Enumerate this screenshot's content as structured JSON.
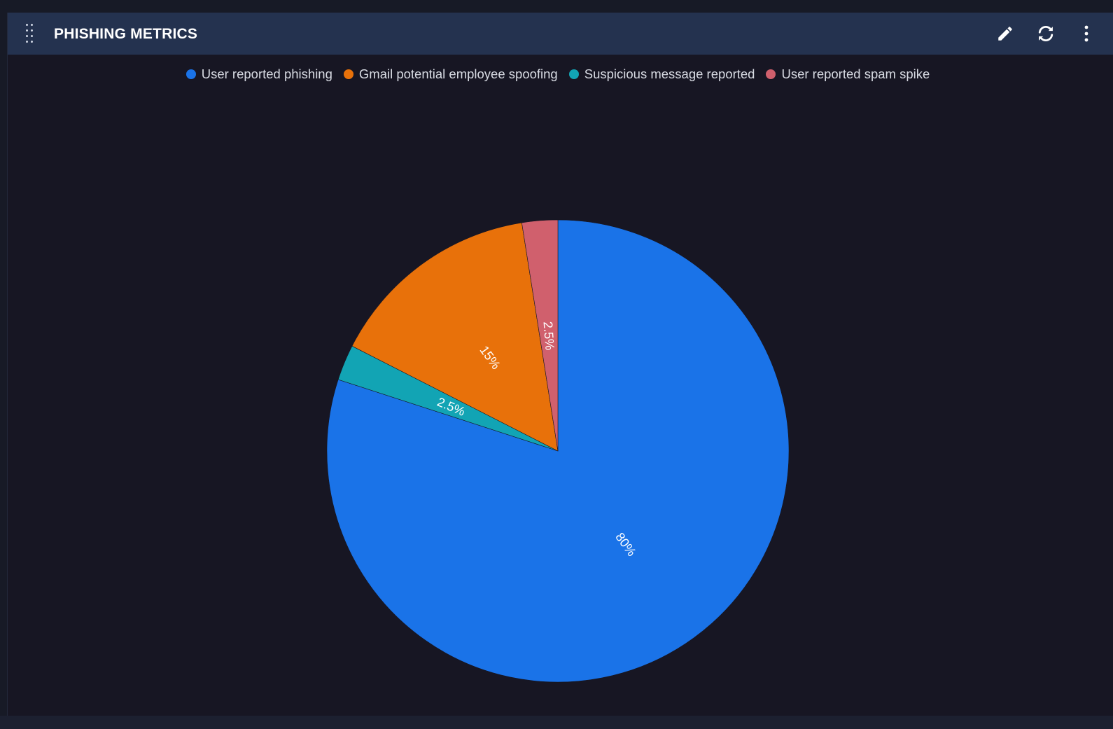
{
  "widget": {
    "title": "PHISHING METRICS",
    "icons": {
      "drag": "drag-handle-icon",
      "edit": "pencil-icon",
      "refresh": "refresh-icon",
      "more": "vertical-ellipsis-icon"
    }
  },
  "colors": {
    "background": "#171623",
    "header": "#24324f",
    "label_text": "#ffffff"
  },
  "chart_data": {
    "type": "pie",
    "title": "",
    "legend_position": "top-center",
    "slice_labels": "percent",
    "start": "12 o'clock",
    "direction": "clockwise",
    "series": [
      {
        "name": "User reported phishing",
        "value": 80,
        "label": "80%",
        "color": "#1a73e8"
      },
      {
        "name": "Suspicious message reported",
        "value": 2.5,
        "label": "2.5%",
        "color": "#12a4b4"
      },
      {
        "name": "Gmail potential employee spoofing",
        "value": 15,
        "label": "15%",
        "color": "#e8710a"
      },
      {
        "name": "User reported spam spike",
        "value": 2.5,
        "label": "2.5%",
        "color": "#d0606d"
      }
    ],
    "legend_order": [
      "User reported phishing",
      "Gmail potential employee spoofing",
      "Suspicious message reported",
      "User reported spam spike"
    ]
  }
}
